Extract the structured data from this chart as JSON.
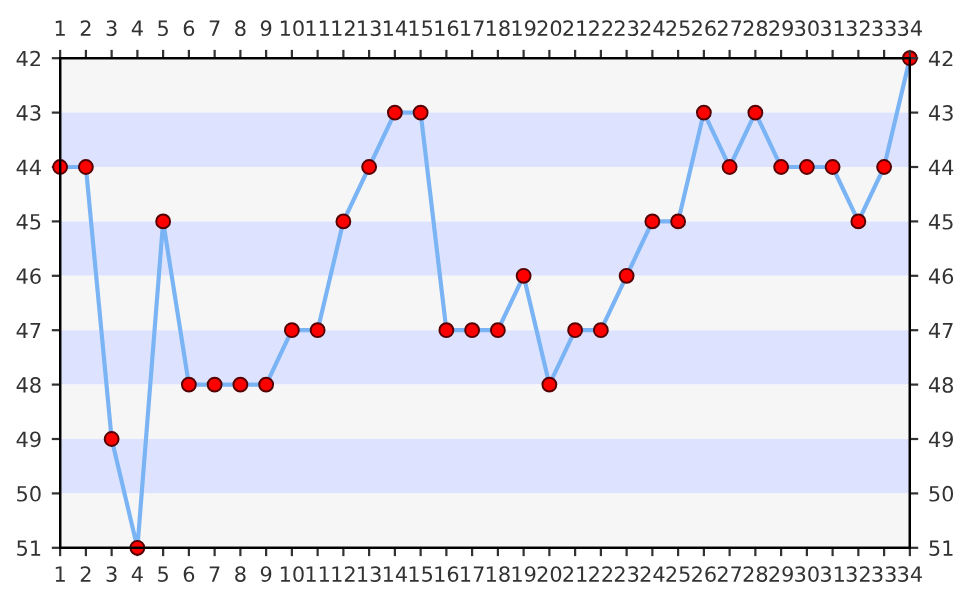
{
  "chart_data": {
    "type": "line",
    "x": [
      1,
      2,
      3,
      4,
      5,
      6,
      7,
      8,
      9,
      10,
      11,
      12,
      13,
      14,
      15,
      16,
      17,
      18,
      19,
      20,
      21,
      22,
      23,
      24,
      25,
      26,
      27,
      28,
      29,
      30,
      31,
      32,
      33,
      34
    ],
    "series": [
      {
        "color": "#7ab4f5",
        "values": [
          44,
          44,
          49,
          51,
          45,
          48,
          48,
          48,
          48,
          47,
          47,
          45,
          44,
          43,
          43,
          47,
          47,
          47,
          46,
          48,
          47,
          47,
          46,
          45,
          45,
          43,
          44,
          43,
          44,
          44,
          44,
          45,
          44,
          42
        ]
      }
    ],
    "marker": "circle",
    "line_style": "solid",
    "xlim": [
      1,
      34
    ],
    "xticks": [
      1,
      2,
      3,
      4,
      5,
      6,
      7,
      8,
      9,
      10,
      11,
      12,
      13,
      14,
      15,
      16,
      17,
      18,
      19,
      20,
      21,
      22,
      23,
      24,
      25,
      26,
      27,
      28,
      29,
      30,
      31,
      32,
      33,
      34
    ],
    "x2lim": [
      1,
      34
    ],
    "x2ticks": [
      1,
      2,
      3,
      4,
      5,
      6,
      7,
      8,
      9,
      10,
      11,
      12,
      13,
      14,
      15,
      16,
      17,
      18,
      19,
      20,
      21,
      22,
      23,
      24,
      25,
      26,
      27,
      28,
      29,
      30,
      31,
      32,
      33,
      34
    ],
    "ylim": [
      51,
      42
    ],
    "yticks": [
      42,
      43,
      44,
      45,
      46,
      47,
      48,
      49,
      50,
      51
    ],
    "y2lim": [
      51,
      42
    ],
    "y2ticks": [
      42,
      43,
      44,
      45,
      46,
      47,
      48,
      49,
      50,
      51
    ],
    "bands": [
      {
        "axis": "y",
        "from": 42,
        "to": 43,
        "color": "#f6f6f6"
      },
      {
        "axis": "y",
        "from": 43,
        "to": 44,
        "color": "#dde3ff"
      },
      {
        "axis": "y",
        "from": 44,
        "to": 45,
        "color": "#f6f6f6"
      },
      {
        "axis": "y",
        "from": 45,
        "to": 46,
        "color": "#dde3ff"
      },
      {
        "axis": "y",
        "from": 46,
        "to": 47,
        "color": "#f6f6f6"
      },
      {
        "axis": "y",
        "from": 47,
        "to": 48,
        "color": "#dde3ff"
      },
      {
        "axis": "y",
        "from": 48,
        "to": 49,
        "color": "#f6f6f6"
      },
      {
        "axis": "y",
        "from": 49,
        "to": 50,
        "color": "#dde3ff"
      },
      {
        "axis": "y",
        "from": 50,
        "to": 51,
        "color": "#f6f6f6"
      }
    ],
    "grid": false,
    "legend": false
  }
}
